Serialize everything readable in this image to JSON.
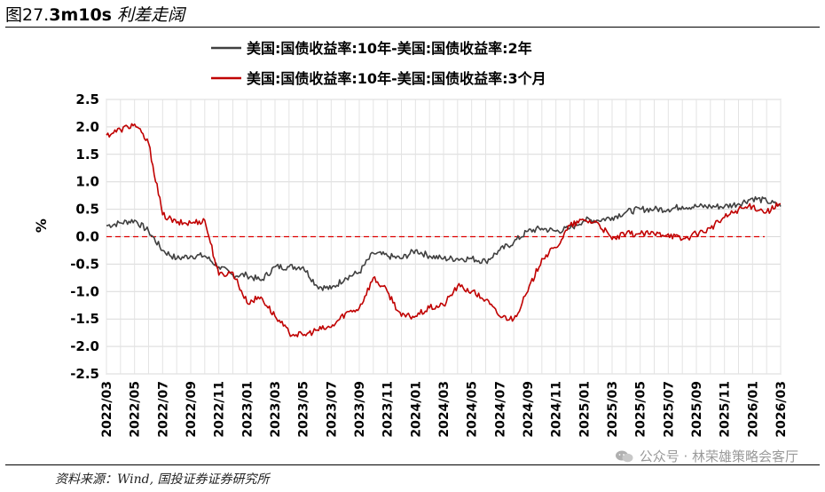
{
  "header": {
    "figure_label": "图27.",
    "figure_title": "3m10s",
    "figure_suffix": " 利差走阔"
  },
  "footer": {
    "source": "资料来源：Wind, 国投证券证券研究所",
    "watermark": "公众号 · 林荣雄策略会客厅",
    "watermark_icon": "wechat-icon"
  },
  "chart_data": {
    "type": "line",
    "title": "3m10s 利差走阔",
    "ylabel": "%",
    "xlabel": "",
    "ylim": [
      -2.5,
      2.5
    ],
    "yticks": [
      "2.5",
      "2.0",
      "1.5",
      "1.0",
      "0.5",
      "0.0",
      "-0.5",
      "-1.0",
      "-1.5",
      "-2.0",
      "-2.5"
    ],
    "xticks": [
      "2022/03",
      "2022/05",
      "2022/07",
      "2022/09",
      "2022/11",
      "2023/01",
      "2023/03",
      "2023/05",
      "2023/07",
      "2023/09",
      "2023/11",
      "2024/01",
      "2024/03",
      "2024/05",
      "2024/07",
      "2024/09",
      "2024/11",
      "2025/01",
      "2025/03",
      "2025/05",
      "2025/07",
      "2025/09",
      "2025/11",
      "2026/01",
      "2026/03"
    ],
    "grid": true,
    "legend_position": "top",
    "zero_line": {
      "y": 0.0,
      "color": "#dd0000",
      "style": "dashed"
    },
    "series": [
      {
        "name": "美国:国债收益率:10年-美国:国债收益率:2年",
        "color": "#404040",
        "points": [
          [
            "2022/03",
            0.2
          ],
          [
            "2022/04",
            0.25
          ],
          [
            "2022/05",
            0.3
          ],
          [
            "2022/06",
            0.1
          ],
          [
            "2022/07",
            -0.25
          ],
          [
            "2022/08",
            -0.4
          ],
          [
            "2022/09",
            -0.35
          ],
          [
            "2022/10",
            -0.35
          ],
          [
            "2022/11",
            -0.55
          ],
          [
            "2022/12",
            -0.7
          ],
          [
            "2023/01",
            -0.7
          ],
          [
            "2023/02",
            -0.8
          ],
          [
            "2023/03",
            -0.55
          ],
          [
            "2023/04",
            -0.55
          ],
          [
            "2023/05",
            -0.55
          ],
          [
            "2023/06",
            -0.9
          ],
          [
            "2023/07",
            -0.95
          ],
          [
            "2023/08",
            -0.75
          ],
          [
            "2023/09",
            -0.65
          ],
          [
            "2023/10",
            -0.3
          ],
          [
            "2023/11",
            -0.35
          ],
          [
            "2023/12",
            -0.4
          ],
          [
            "2024/01",
            -0.25
          ],
          [
            "2024/02",
            -0.35
          ],
          [
            "2024/03",
            -0.4
          ],
          [
            "2024/04",
            -0.4
          ],
          [
            "2024/05",
            -0.4
          ],
          [
            "2024/06",
            -0.45
          ],
          [
            "2024/07",
            -0.25
          ],
          [
            "2024/08",
            -0.1
          ],
          [
            "2024/09",
            0.1
          ],
          [
            "2024/10",
            0.15
          ],
          [
            "2024/11",
            0.1
          ],
          [
            "2024/12",
            0.15
          ],
          [
            "2025/01",
            0.3
          ],
          [
            "2025/02",
            0.3
          ],
          [
            "2025/03",
            0.35
          ],
          [
            "2025/04",
            0.45
          ],
          [
            "2025/05",
            0.5
          ],
          [
            "2025/06",
            0.5
          ],
          [
            "2025/07",
            0.5
          ],
          [
            "2025/08",
            0.55
          ],
          [
            "2025/09",
            0.55
          ],
          [
            "2025/10",
            0.55
          ],
          [
            "2025/11",
            0.55
          ],
          [
            "2025/12",
            0.6
          ],
          [
            "2026/01",
            0.7
          ],
          [
            "2026/02",
            0.65
          ],
          [
            "2026/03",
            0.55
          ]
        ]
      },
      {
        "name": "美国:国债收益率:10年-美国:国债收益率:3个月",
        "color": "#c00000",
        "points": [
          [
            "2022/03",
            1.85
          ],
          [
            "2022/04",
            1.95
          ],
          [
            "2022/05",
            2.05
          ],
          [
            "2022/06",
            1.7
          ],
          [
            "2022/07",
            0.4
          ],
          [
            "2022/08",
            0.25
          ],
          [
            "2022/09",
            0.25
          ],
          [
            "2022/10",
            0.3
          ],
          [
            "2022/11",
            -0.7
          ],
          [
            "2022/12",
            -0.65
          ],
          [
            "2023/01",
            -1.2
          ],
          [
            "2023/02",
            -1.1
          ],
          [
            "2023/03",
            -1.45
          ],
          [
            "2023/04",
            -1.75
          ],
          [
            "2023/05",
            -1.8
          ],
          [
            "2023/06",
            -1.7
          ],
          [
            "2023/07",
            -1.65
          ],
          [
            "2023/08",
            -1.4
          ],
          [
            "2023/09",
            -1.3
          ],
          [
            "2023/10",
            -0.75
          ],
          [
            "2023/11",
            -1.0
          ],
          [
            "2023/12",
            -1.45
          ],
          [
            "2024/01",
            -1.45
          ],
          [
            "2024/02",
            -1.3
          ],
          [
            "2024/03",
            -1.25
          ],
          [
            "2024/04",
            -0.9
          ],
          [
            "2024/05",
            -1.0
          ],
          [
            "2024/06",
            -1.15
          ],
          [
            "2024/07",
            -1.45
          ],
          [
            "2024/08",
            -1.5
          ],
          [
            "2024/09",
            -1.0
          ],
          [
            "2024/10",
            -0.4
          ],
          [
            "2024/11",
            -0.2
          ],
          [
            "2024/12",
            0.2
          ],
          [
            "2025/01",
            0.3
          ],
          [
            "2025/02",
            0.25
          ],
          [
            "2025/03",
            -0.05
          ],
          [
            "2025/04",
            0.05
          ],
          [
            "2025/05",
            0.05
          ],
          [
            "2025/06",
            0.05
          ],
          [
            "2025/07",
            0.05
          ],
          [
            "2025/08",
            -0.05
          ],
          [
            "2025/09",
            0.05
          ],
          [
            "2025/10",
            0.15
          ],
          [
            "2025/11",
            0.35
          ],
          [
            "2025/12",
            0.5
          ],
          [
            "2026/01",
            0.55
          ],
          [
            "2026/02",
            0.45
          ],
          [
            "2026/03",
            0.6
          ]
        ]
      }
    ]
  }
}
